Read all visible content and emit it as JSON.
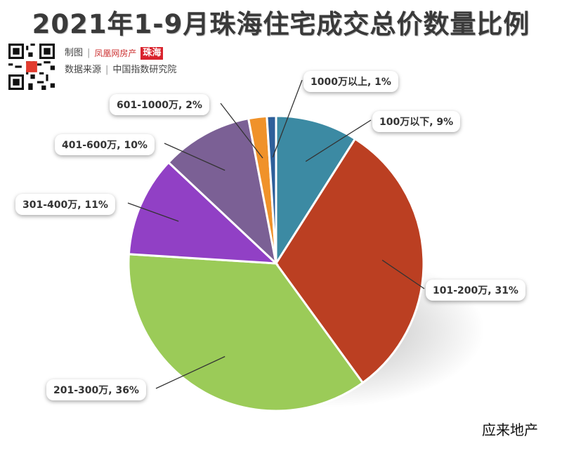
{
  "title": "2021年1-9月珠海住宅成交总价数量比例",
  "credits": {
    "maker_label": "制图",
    "maker_logo_text": "凤凰网房产",
    "maker_city": "珠海",
    "source_label": "数据来源",
    "source_value": "中国指数研究院"
  },
  "brand": "应来地产",
  "chart_data": {
    "type": "pie",
    "title": "2021年1-9月珠海住宅成交总价数量比例",
    "categories": [
      "1000万以上",
      "100万以下",
      "101-200万",
      "201-300万",
      "301-400万",
      "401-600万",
      "601-1000万"
    ],
    "values": [
      1,
      9,
      31,
      36,
      11,
      10,
      2
    ],
    "labels": [
      "1000万以上, 1%",
      "100万以下, 9%",
      "101-200万, 31%",
      "201-300万, 36%",
      "301-400万, 11%",
      "401-600万, 10%",
      "601-1000万, 2%"
    ],
    "colors": [
      "#2e5f9a",
      "#3c8aa3",
      "#bb3f22",
      "#9bcb58",
      "#9140c5",
      "#7b6095",
      "#f0922a"
    ],
    "start": "12 o'clock, clockwise starting after the 1000万以上 slice"
  }
}
